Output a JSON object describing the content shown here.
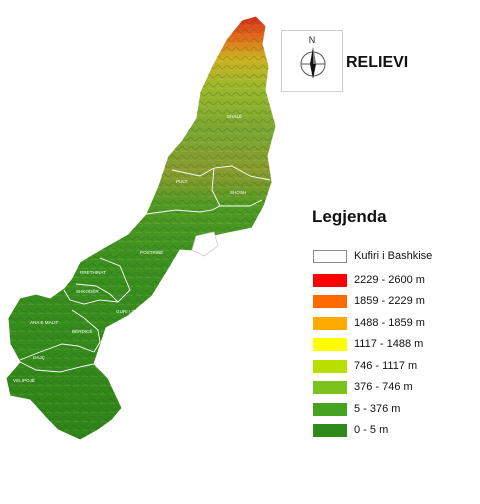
{
  "map": {
    "title": "RELIEVI",
    "north_label": "N"
  },
  "legend": {
    "title": "Legjenda",
    "border": {
      "label": "Kufiri i Bashkise",
      "color": "#ffffff"
    },
    "classes": [
      {
        "label": "2229 - 2600 m",
        "color": "#ff0000"
      },
      {
        "label": "1859 - 2229 m",
        "color": "#ff6a00"
      },
      {
        "label": "1488 - 1859 m",
        "color": "#ffaa00"
      },
      {
        "label": "1117 - 1488 m",
        "color": "#ffff00"
      },
      {
        "label": "746 - 1117 m",
        "color": "#b7e000"
      },
      {
        "label": "376 - 746 m",
        "color": "#7cc21d"
      },
      {
        "label": "5 - 376 m",
        "color": "#45a31f"
      },
      {
        "label": "0 - 5 m",
        "color": "#2f8a19"
      }
    ]
  },
  "regions": [
    {
      "name": "SHALË"
    },
    {
      "name": "PULT"
    },
    {
      "name": "SHOSH"
    },
    {
      "name": "POSTRIBË"
    },
    {
      "name": "RRETHINAT"
    },
    {
      "name": "SHKODËR"
    },
    {
      "name": "GURI I ZI"
    },
    {
      "name": "ANA E MALIT"
    },
    {
      "name": "BËRDICË"
    },
    {
      "name": "DAJÇ"
    },
    {
      "name": "VELIPOJË"
    }
  ]
}
